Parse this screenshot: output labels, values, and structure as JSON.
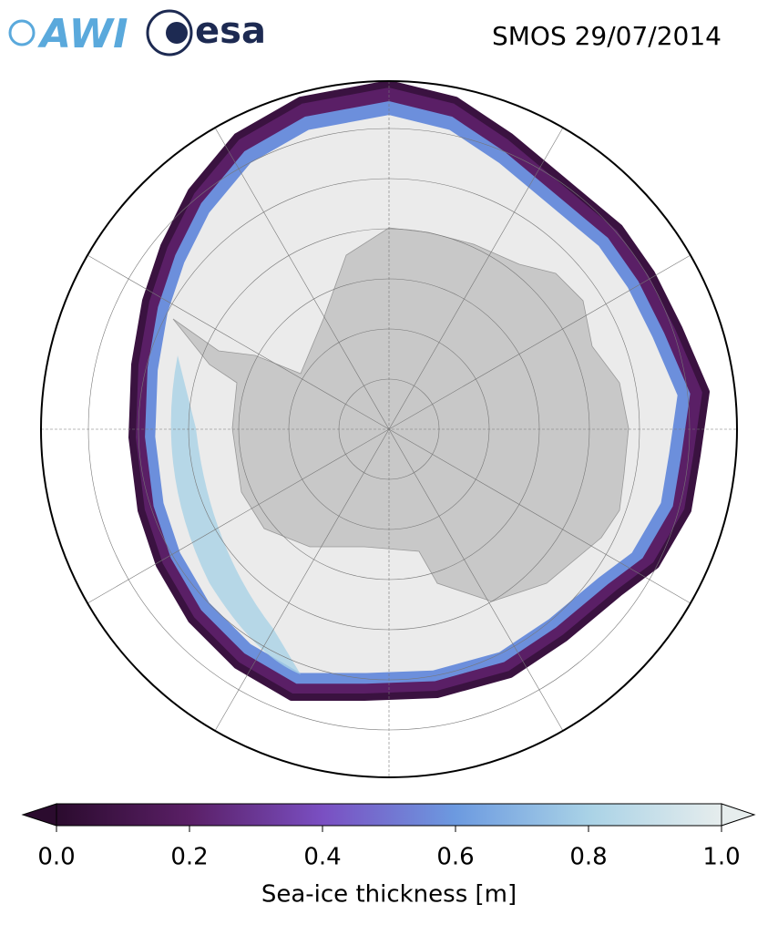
{
  "logos": {
    "awi": "AWI",
    "esa": "esa"
  },
  "map": {
    "title": "SMOS 29/07/2014"
  },
  "colorbar": {
    "label": "Sea-ice thickness [m]",
    "lim": [
      0,
      1
    ],
    "ticks": [
      {
        "value": 0,
        "label": "0.0"
      },
      {
        "value": 0.2,
        "label": "0.2"
      },
      {
        "value": 0.4,
        "label": "0.4"
      },
      {
        "value": 0.6,
        "label": "0.6"
      },
      {
        "value": 0.8,
        "label": "0.8"
      },
      {
        "value": 1,
        "label": "1.0"
      }
    ],
    "colors": [
      "#2b0b2e",
      "#5a1f66",
      "#7a4fc2",
      "#6c9ae0",
      "#a9d2e6",
      "#e6eded"
    ]
  }
}
